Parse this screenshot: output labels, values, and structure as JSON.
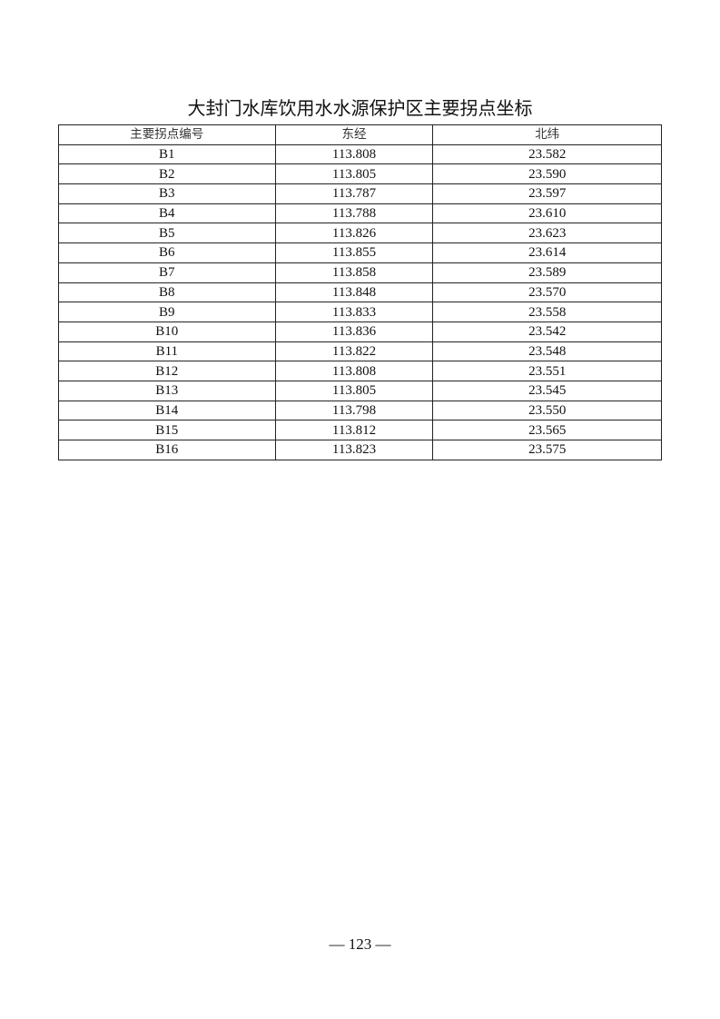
{
  "title": "大封门水库饮用水水源保护区主要拐点坐标",
  "table": {
    "headers": [
      "主要拐点编号",
      "东经",
      "北纬"
    ],
    "rows": [
      [
        "B1",
        "113.808",
        "23.582"
      ],
      [
        "B2",
        "113.805",
        "23.590"
      ],
      [
        "B3",
        "113.787",
        "23.597"
      ],
      [
        "B4",
        "113.788",
        "23.610"
      ],
      [
        "B5",
        "113.826",
        "23.623"
      ],
      [
        "B6",
        "113.855",
        "23.614"
      ],
      [
        "B7",
        "113.858",
        "23.589"
      ],
      [
        "B8",
        "113.848",
        "23.570"
      ],
      [
        "B9",
        "113.833",
        "23.558"
      ],
      [
        "B10",
        "113.836",
        "23.542"
      ],
      [
        "B11",
        "113.822",
        "23.548"
      ],
      [
        "B12",
        "113.808",
        "23.551"
      ],
      [
        "B13",
        "113.805",
        "23.545"
      ],
      [
        "B14",
        "113.798",
        "23.550"
      ],
      [
        "B15",
        "113.812",
        "23.565"
      ],
      [
        "B16",
        "113.823",
        "23.575"
      ]
    ]
  },
  "page_number": "— 123 —"
}
